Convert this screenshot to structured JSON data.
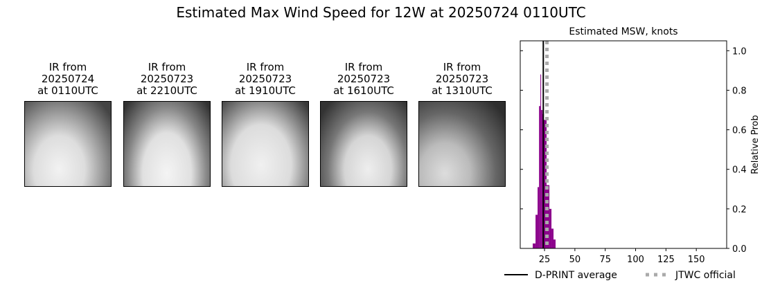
{
  "title": "Estimated Max Wind Speed for 12W at 20250724 0110UTC",
  "panels": [
    {
      "l1": "IR from",
      "l2": "20250724",
      "l3": "at 0110UTC"
    },
    {
      "l1": "IR from",
      "l2": "20250723",
      "l3": "at 2210UTC"
    },
    {
      "l1": "IR from",
      "l2": "20250723",
      "l3": "at 1910UTC"
    },
    {
      "l1": "IR from",
      "l2": "20250723",
      "l3": "at 1610UTC"
    },
    {
      "l1": "IR from",
      "l2": "20250723",
      "l3": "at 1310UTC"
    }
  ],
  "chart_data": {
    "type": "bar",
    "title": "Estimated MSW, knots",
    "ylabel": "Relative Prob",
    "xlim": [
      5,
      175
    ],
    "ylim": [
      0,
      1.05
    ],
    "xticks": [
      25,
      50,
      75,
      100,
      125,
      150
    ],
    "yticks": [
      "0.0",
      "0.2",
      "0.4",
      "0.6",
      "0.8",
      "1.0"
    ],
    "bar_color": "#8b008b",
    "bins": [
      {
        "x0": 15.3,
        "x1": 17.6,
        "p": 0.025
      },
      {
        "x0": 17.6,
        "x1": 19.3,
        "p": 0.17
      },
      {
        "x0": 19.3,
        "x1": 20.5,
        "p": 0.31
      },
      {
        "x0": 20.5,
        "x1": 21.6,
        "p": 0.72
      },
      {
        "x0": 21.6,
        "x1": 22.2,
        "p": 0.88
      },
      {
        "x0": 22.2,
        "x1": 23.3,
        "p": 0.7
      },
      {
        "x0": 23.3,
        "x1": 24.4,
        "p": 0.68
      },
      {
        "x0": 24.4,
        "x1": 26.7,
        "p": 0.65
      },
      {
        "x0": 26.7,
        "x1": 29.0,
        "p": 0.32
      },
      {
        "x0": 29.0,
        "x1": 30.7,
        "p": 0.2
      },
      {
        "x0": 30.7,
        "x1": 32.4,
        "p": 0.1
      },
      {
        "x0": 32.4,
        "x1": 34.1,
        "p": 0.045
      }
    ],
    "dprint_average": 24,
    "jtwc_official": 27,
    "legend": [
      {
        "label": "D-PRINT average",
        "color": "#000000",
        "style": "solid"
      },
      {
        "label": "JTWC official",
        "color": "#aaaaaa",
        "style": "dotted"
      }
    ],
    "legend_placement": "bottom"
  }
}
